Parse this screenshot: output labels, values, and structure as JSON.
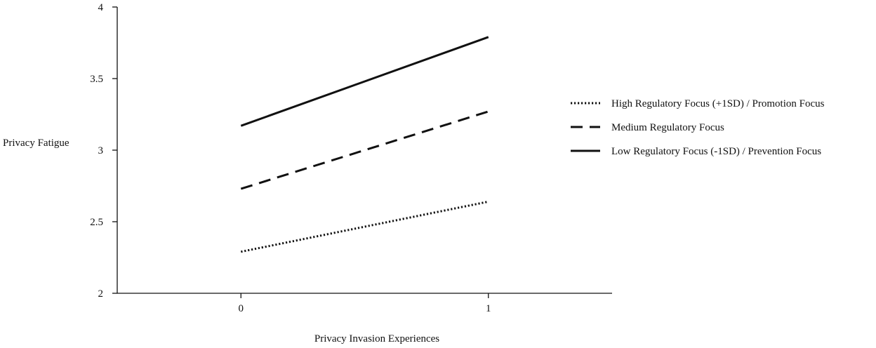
{
  "chart_data": {
    "type": "line",
    "title": "",
    "xlabel": "Privacy Invasion Experiences",
    "ylabel": "Privacy Fatigue",
    "x": [
      0,
      1
    ],
    "x_tick_labels": [
      "0",
      "1"
    ],
    "xlim": [
      -0.5,
      1.5
    ],
    "ylim": [
      2,
      4
    ],
    "y_ticks": [
      2,
      2.5,
      3,
      3.5,
      4
    ],
    "y_tick_labels": [
      "2",
      "2.5",
      "3",
      "3.5",
      "4"
    ],
    "grid": false,
    "legend_position": "right",
    "series": [
      {
        "name": "High Regulatory Focus (+1SD) / Promotion Focus",
        "values": [
          2.29,
          2.64
        ],
        "line_style": "dotted",
        "color": "#111111"
      },
      {
        "name": "Medium Regulatory Focus",
        "values": [
          2.73,
          3.27
        ],
        "line_style": "dashed",
        "color": "#111111"
      },
      {
        "name": "Low Regulatory Focus (-1SD) / Prevention Focus",
        "values": [
          3.17,
          3.79
        ],
        "line_style": "solid",
        "color": "#111111"
      }
    ]
  }
}
